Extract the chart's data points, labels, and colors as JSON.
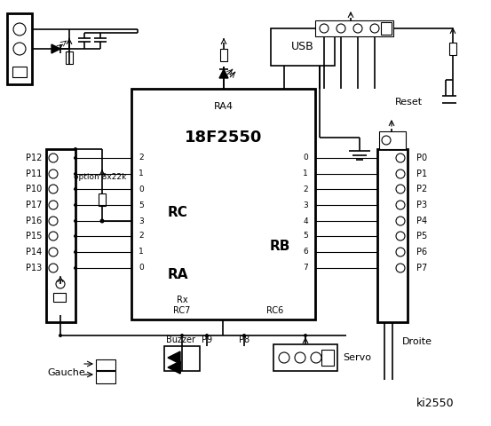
{
  "bg_color": "#ffffff",
  "chip_label": "18F2550",
  "chip_sublabel": "RA4",
  "rc_label": "RC",
  "ra_label": "RA",
  "rb_label": "RB",
  "left_pin_nums": [
    "2",
    "1",
    "0",
    "5",
    "3",
    "2",
    "1",
    "0"
  ],
  "right_pin_nums": [
    "0",
    "1",
    "2",
    "3",
    "4",
    "5",
    "6",
    "7"
  ],
  "left_connector_labels": [
    "P12",
    "P11",
    "P10",
    "P17",
    "P16",
    "P15",
    "P14",
    "P13"
  ],
  "right_connector_labels": [
    "P0",
    "P1",
    "P2",
    "P3",
    "P4",
    "P5",
    "P6",
    "P7"
  ],
  "option_text": "option 8x22k",
  "usb_text": "USB",
  "reset_text": "Reset",
  "rx_text": "Rx",
  "rc7_text": "RC7",
  "rc6_text": "RC6",
  "gauche_text": "Gauche",
  "buzzer_text": "Buzzer",
  "p9_text": "P9",
  "p8_text": "P8",
  "servo_text": "Servo",
  "droite_text": "Droite",
  "title_text": "ki2550"
}
